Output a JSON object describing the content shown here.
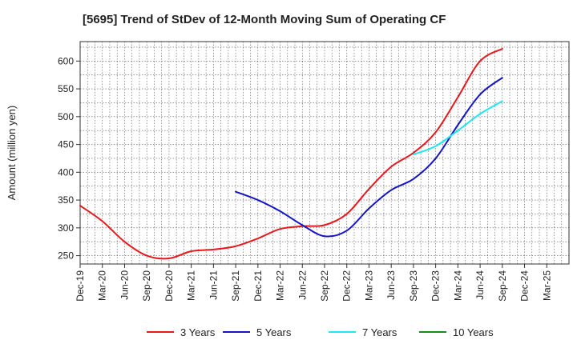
{
  "chart_data": {
    "type": "line",
    "title": "[5695]  Trend of StDev of 12-Month Moving Sum of Operating CF",
    "xlabel": "",
    "ylabel": "Amount (million yen)",
    "ylim": [
      235,
      635
    ],
    "yticks": [
      250,
      300,
      350,
      400,
      450,
      500,
      550,
      600
    ],
    "grid": true,
    "legend_position": "bottom",
    "categories": [
      "Dec-19",
      "Mar-20",
      "Jun-20",
      "Sep-20",
      "Dec-20",
      "Mar-21",
      "Jun-21",
      "Sep-21",
      "Dec-21",
      "Mar-22",
      "Jun-22",
      "Sep-22",
      "Dec-22",
      "Mar-23",
      "Jun-23",
      "Sep-23",
      "Dec-23",
      "Mar-24",
      "Jun-24",
      "Sep-24",
      "Dec-24",
      "Mar-25"
    ],
    "series": [
      {
        "name": "3 Years",
        "color": "#e8181c",
        "values": [
          340,
          312,
          275,
          250,
          245,
          258,
          261,
          267,
          281,
          298,
          303,
          305,
          325,
          370,
          410,
          435,
          472,
          535,
          600,
          622,
          null,
          null
        ]
      },
      {
        "name": "5 Years",
        "color": "#1414c8",
        "values": [
          null,
          null,
          null,
          null,
          null,
          null,
          null,
          365,
          350,
          330,
          305,
          285,
          295,
          335,
          368,
          388,
          425,
          485,
          540,
          570,
          null,
          null
        ]
      },
      {
        "name": "7 Years",
        "color": "#1ee8f0",
        "values": [
          null,
          null,
          null,
          null,
          null,
          null,
          null,
          null,
          null,
          null,
          null,
          null,
          null,
          null,
          null,
          432,
          447,
          475,
          505,
          528,
          null,
          null
        ]
      },
      {
        "name": "10 Years",
        "color": "#1a8a1a",
        "values": [
          null,
          null,
          null,
          null,
          null,
          null,
          null,
          null,
          null,
          null,
          null,
          null,
          null,
          null,
          null,
          null,
          null,
          null,
          null,
          null,
          null,
          null
        ]
      }
    ]
  }
}
